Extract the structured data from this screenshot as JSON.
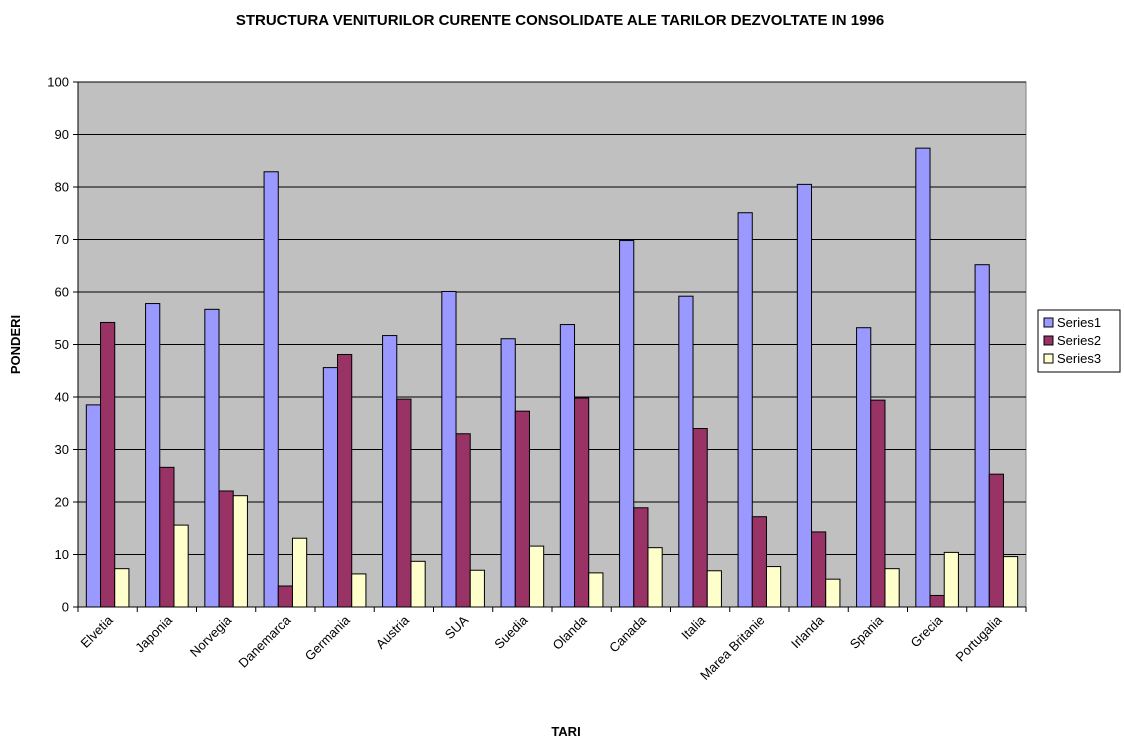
{
  "chart_data": {
    "type": "bar",
    "title": "STRUCTURA VENITURILOR CURENTE CONSOLIDATE ALE TARILOR DEZVOLTATE IN 1996",
    "xlabel": "TARI",
    "ylabel": "PONDERI",
    "ylim": [
      0,
      100
    ],
    "yticks": [
      0,
      10,
      20,
      30,
      40,
      50,
      60,
      70,
      80,
      90,
      100
    ],
    "grid": true,
    "legend_position": "right",
    "categories": [
      "Elvetia",
      "Japonia",
      "Norvegia",
      "Danemarca",
      "Germania",
      "Austria",
      "SUA",
      "Suedia",
      "Olanda",
      "Canada",
      "Italia",
      "Marea Britanie",
      "Irlanda",
      "Spania",
      "Grecia",
      "Portugalia"
    ],
    "series": [
      {
        "name": "Series1",
        "color": "#9999ff",
        "values": [
          38.5,
          57.8,
          56.7,
          82.9,
          45.6,
          51.7,
          60.1,
          51.1,
          53.8,
          69.8,
          59.2,
          75.1,
          80.5,
          53.2,
          87.4,
          65.2
        ]
      },
      {
        "name": "Series2",
        "color": "#993366",
        "values": [
          54.2,
          26.6,
          22.1,
          4.0,
          48.1,
          39.6,
          33.0,
          37.3,
          39.8,
          18.9,
          34.0,
          17.2,
          14.3,
          39.4,
          2.2,
          25.3
        ]
      },
      {
        "name": "Series3",
        "color": "#ffffcc",
        "values": [
          7.3,
          15.6,
          21.2,
          13.1,
          6.3,
          8.7,
          7.0,
          11.6,
          6.5,
          11.3,
          6.9,
          7.7,
          5.3,
          7.3,
          10.4,
          9.6
        ]
      }
    ],
    "plot_area_color": "#c0c0c0"
  }
}
